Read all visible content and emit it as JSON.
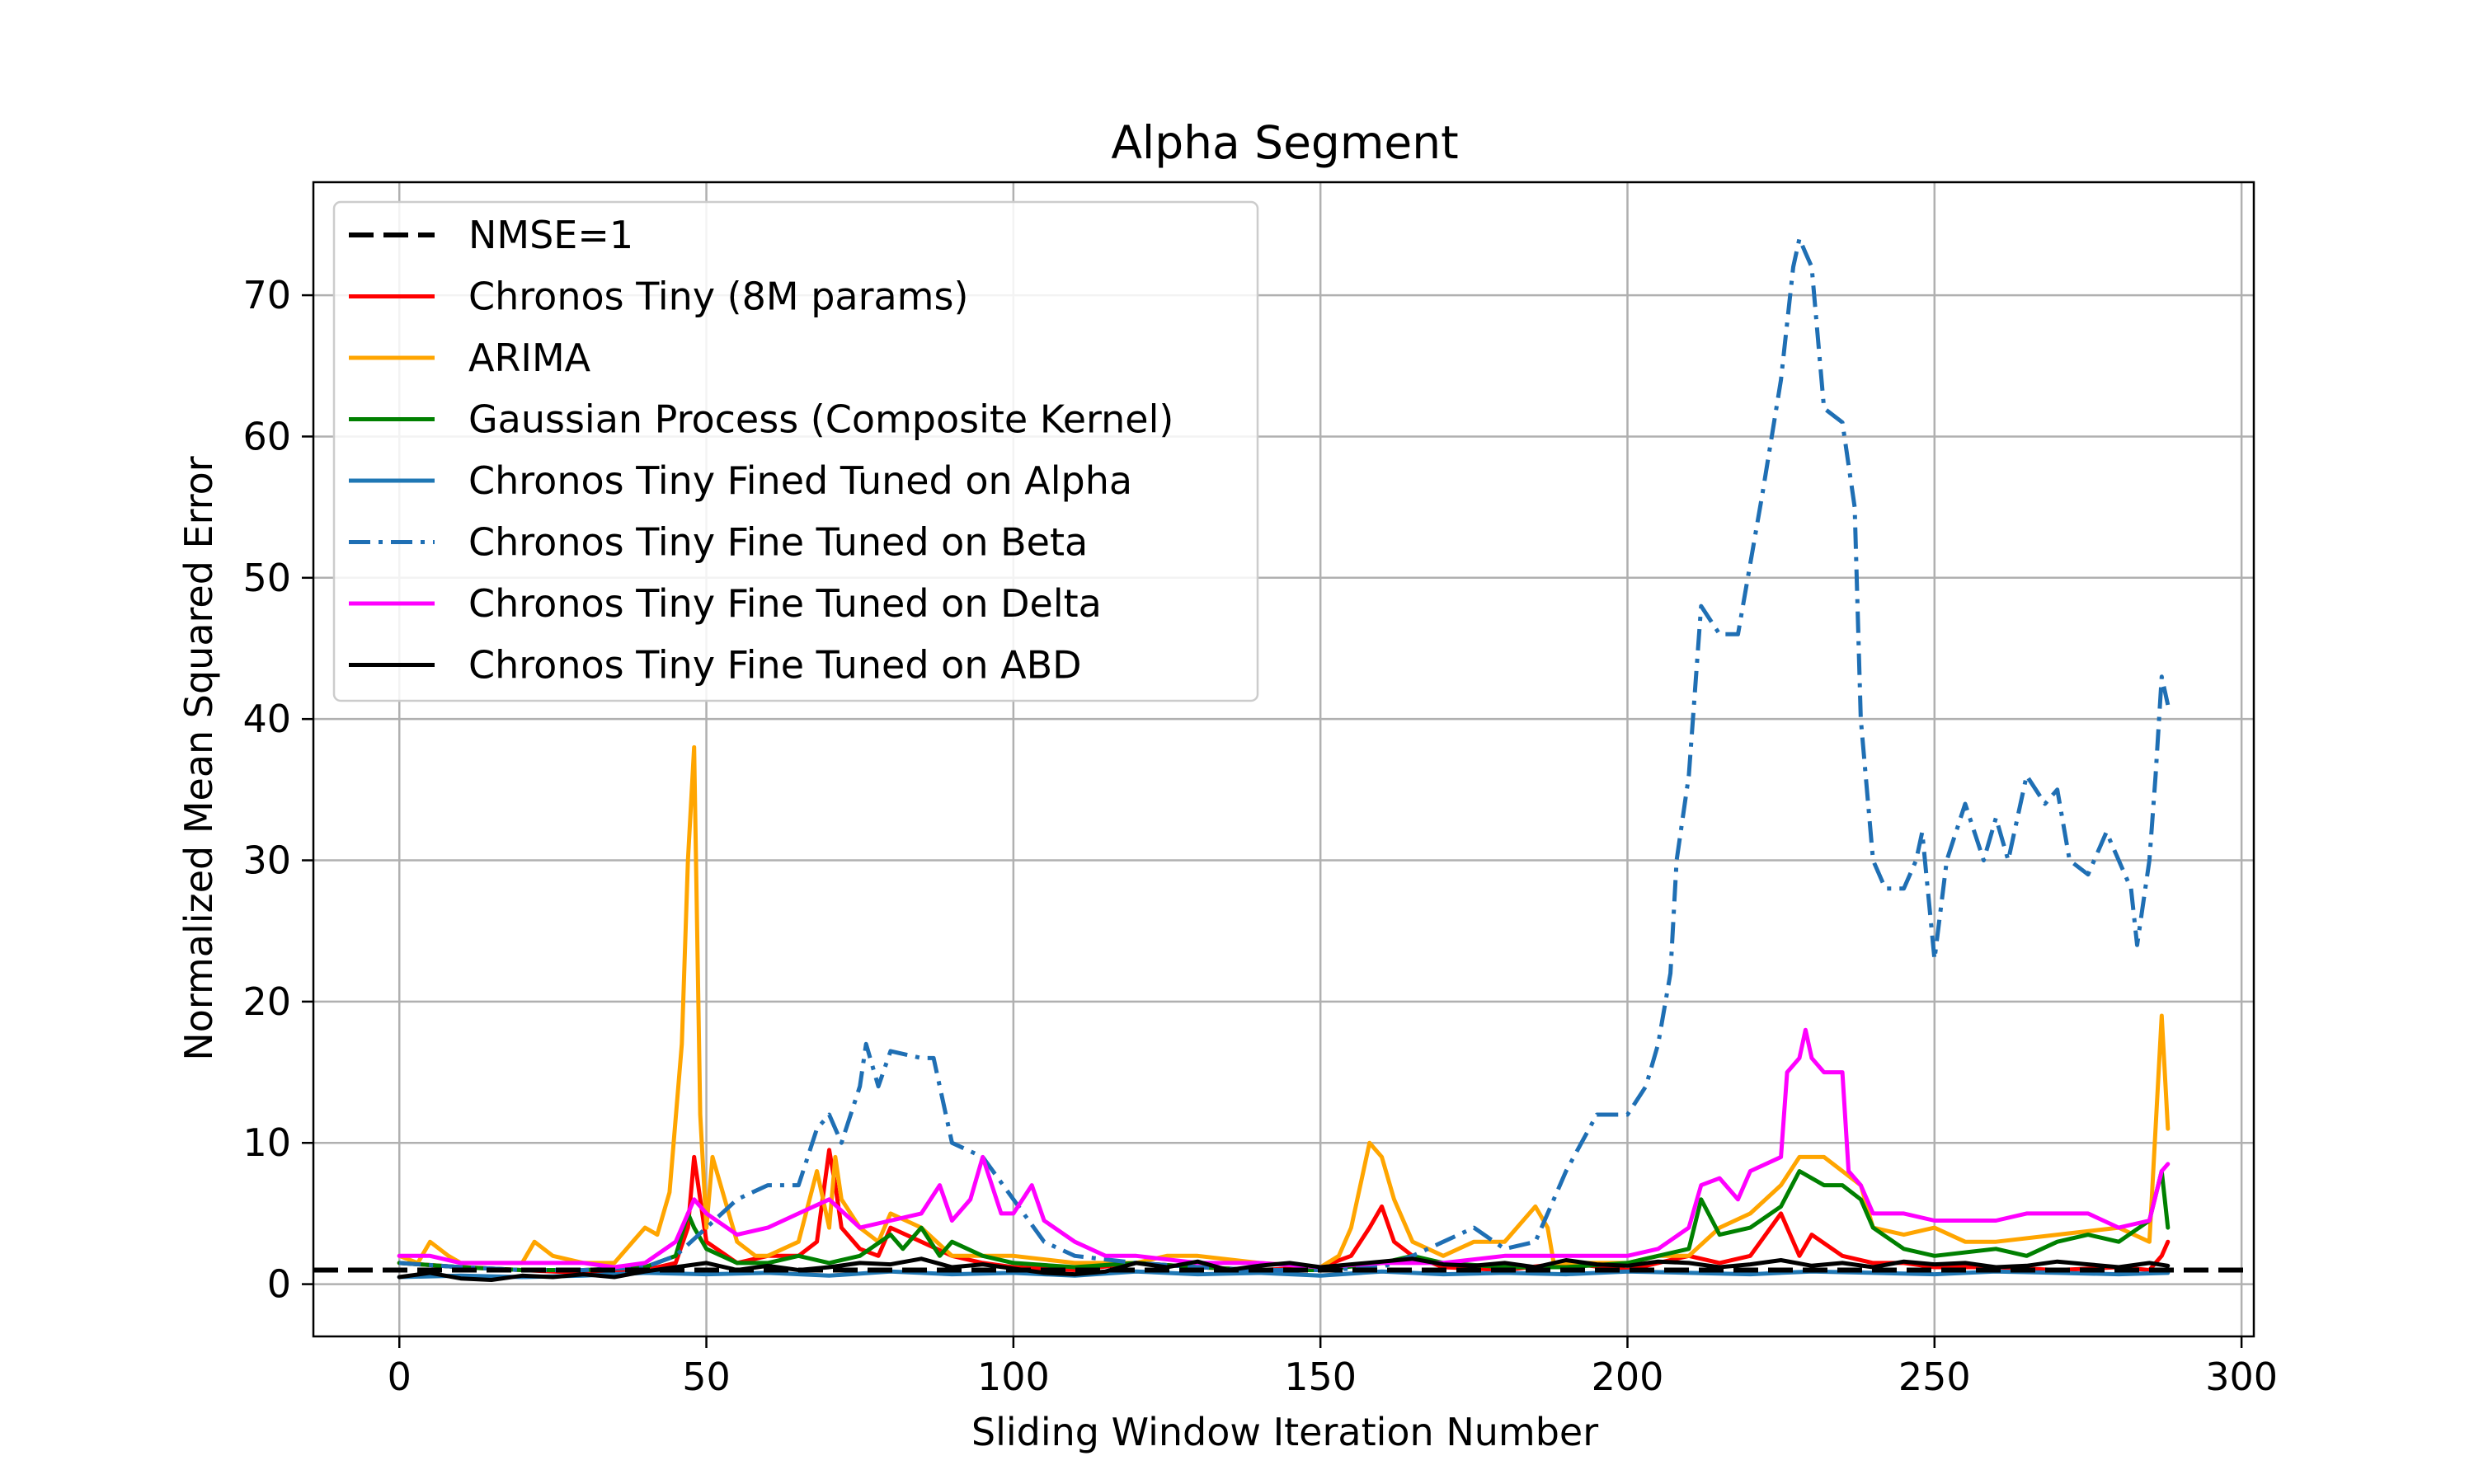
{
  "chart_data": {
    "type": "line",
    "title": "Alpha Segment",
    "xlabel": "Sliding Window Iteration Number",
    "ylabel": "Normalized Mean Squared Error",
    "xlim": [
      -14,
      302
    ],
    "ylim": [
      -3.7,
      78
    ],
    "xticks": [
      0,
      50,
      100,
      150,
      200,
      250,
      300
    ],
    "yticks": [
      0,
      10,
      20,
      30,
      40,
      50,
      60,
      70
    ],
    "grid": true,
    "legend_position": "top-left",
    "reference_line": {
      "name": "NMSE=1",
      "y": 1,
      "color": "#000000",
      "style": "dashed"
    },
    "series": [
      {
        "name": "Chronos Tiny (8M params)",
        "color": "#ff0000",
        "style": "solid",
        "x": [
          0,
          10,
          20,
          30,
          40,
          45,
          47,
          48,
          50,
          55,
          60,
          65,
          68,
          70,
          71,
          72,
          75,
          78,
          80,
          85,
          90,
          95,
          100,
          110,
          120,
          130,
          140,
          150,
          155,
          158,
          160,
          162,
          165,
          170,
          180,
          190,
          200,
          205,
          210,
          215,
          220,
          225,
          226,
          228,
          230,
          235,
          240,
          245,
          250,
          260,
          270,
          280,
          285,
          287,
          288
        ],
        "y": [
          1.5,
          1.2,
          1,
          0.8,
          1,
          1.5,
          4,
          9,
          3,
          1.5,
          2,
          2,
          3,
          9.5,
          7,
          4,
          2.5,
          2,
          4,
          3,
          2,
          1.5,
          1.2,
          1,
          1.5,
          1.2,
          1,
          1.2,
          2,
          4,
          5.5,
          3,
          2,
          1.2,
          1,
          1.5,
          1,
          1.5,
          2,
          1.5,
          2,
          5,
          4,
          2,
          3.5,
          2,
          1.5,
          1.5,
          1.2,
          1.2,
          1,
          1.2,
          1,
          2,
          3
        ]
      },
      {
        "name": "ARIMA",
        "color": "#ffa500",
        "style": "solid",
        "x": [
          0,
          3,
          5,
          8,
          10,
          15,
          20,
          22,
          25,
          30,
          35,
          38,
          40,
          42,
          44,
          46,
          47,
          48,
          49,
          50,
          51,
          55,
          58,
          60,
          65,
          68,
          70,
          71,
          72,
          75,
          78,
          80,
          85,
          90,
          95,
          100,
          110,
          120,
          125,
          130,
          140,
          150,
          153,
          155,
          157,
          158,
          160,
          162,
          165,
          170,
          175,
          180,
          185,
          187,
          188,
          190,
          195,
          200,
          205,
          210,
          215,
          220,
          225,
          228,
          230,
          232,
          235,
          238,
          240,
          245,
          250,
          255,
          260,
          270,
          280,
          285,
          287,
          288
        ],
        "y": [
          2,
          1.5,
          3,
          2,
          1.5,
          1.5,
          1.5,
          3,
          2,
          1.5,
          1.5,
          3,
          4,
          3.5,
          6.5,
          17,
          30,
          38,
          12,
          4,
          9,
          3,
          2,
          2,
          3,
          8,
          4,
          9,
          6,
          4,
          3,
          5,
          4,
          2,
          2,
          2,
          1.5,
          1.5,
          2,
          2,
          1.5,
          1.2,
          2,
          4,
          8,
          10,
          9,
          6,
          3,
          2,
          3,
          3,
          5.5,
          4,
          1.5,
          1.5,
          1.5,
          1.5,
          2,
          2,
          4,
          5,
          7,
          9,
          9,
          9,
          8,
          7,
          4,
          3.5,
          4,
          3,
          3,
          3.5,
          4,
          3,
          19,
          11
        ]
      },
      {
        "name": "Gaussian Process (Composite Kernel)",
        "color": "#008000",
        "style": "solid",
        "x": [
          0,
          10,
          20,
          30,
          40,
          45,
          47,
          48,
          50,
          55,
          60,
          65,
          70,
          75,
          80,
          82,
          85,
          88,
          90,
          95,
          100,
          110,
          120,
          130,
          140,
          150,
          160,
          165,
          170,
          180,
          190,
          200,
          205,
          210,
          212,
          215,
          220,
          225,
          228,
          230,
          232,
          235,
          238,
          240,
          245,
          250,
          260,
          265,
          270,
          275,
          280,
          285,
          287,
          288
        ],
        "y": [
          1.5,
          1.2,
          1,
          1,
          1.2,
          2,
          5,
          4,
          2.5,
          1.5,
          1.5,
          2,
          1.5,
          2,
          3.5,
          2.5,
          4,
          2,
          3,
          2,
          1.5,
          1.2,
          1.5,
          1.2,
          1,
          1,
          1.5,
          2,
          1.5,
          1.2,
          1.2,
          1.5,
          2,
          2.5,
          6,
          3.5,
          4,
          5.5,
          8,
          7.5,
          7,
          7,
          6,
          4,
          2.5,
          2,
          2.5,
          2,
          3,
          3.5,
          3,
          4.5,
          8,
          4
        ]
      },
      {
        "name": "Chronos Tiny Fined Tuned on Alpha",
        "color": "#1f77b4",
        "style": "solid",
        "x": [
          0,
          10,
          20,
          30,
          40,
          50,
          60,
          70,
          80,
          90,
          100,
          110,
          120,
          130,
          140,
          150,
          160,
          170,
          180,
          190,
          200,
          210,
          220,
          230,
          240,
          250,
          260,
          270,
          280,
          288
        ],
        "y": [
          0.5,
          0.6,
          0.5,
          0.6,
          0.8,
          0.7,
          0.8,
          0.6,
          0.9,
          0.7,
          0.8,
          0.6,
          0.9,
          0.7,
          0.8,
          0.6,
          0.9,
          0.7,
          0.8,
          0.7,
          0.9,
          0.8,
          0.7,
          0.9,
          0.8,
          0.7,
          0.9,
          0.8,
          0.7,
          0.8
        ]
      },
      {
        "name": "Chronos Tiny Fine Tuned on Beta",
        "color": "#1f6fb4",
        "style": "dashdot",
        "x": [
          0,
          10,
          20,
          30,
          40,
          45,
          50,
          55,
          60,
          65,
          68,
          70,
          72,
          75,
          76,
          78,
          80,
          85,
          87,
          90,
          95,
          100,
          105,
          110,
          120,
          130,
          140,
          150,
          160,
          165,
          170,
          175,
          180,
          185,
          190,
          195,
          200,
          203,
          205,
          207,
          208,
          210,
          212,
          215,
          218,
          220,
          222,
          225,
          227,
          228,
          229,
          230,
          232,
          235,
          237,
          238,
          240,
          242,
          245,
          247,
          248,
          250,
          252,
          255,
          258,
          260,
          262,
          265,
          268,
          270,
          272,
          275,
          278,
          280,
          282,
          283,
          285,
          286,
          287,
          288
        ],
        "y": [
          1.5,
          1.2,
          1,
          1,
          1.2,
          2,
          4,
          6,
          7,
          7,
          11,
          12,
          10,
          14,
          17,
          14,
          16.5,
          16,
          16,
          10,
          9,
          6,
          3,
          2,
          1.5,
          1.2,
          1,
          1,
          1.2,
          2,
          3,
          4,
          2.5,
          3,
          8,
          12,
          12,
          14,
          17,
          22,
          30,
          36,
          48,
          46,
          46,
          51,
          56,
          64,
          72,
          74,
          73,
          72,
          62,
          61,
          55,
          40,
          30,
          28,
          28,
          30,
          32,
          23,
          30,
          34,
          30,
          33,
          30,
          36,
          34,
          35,
          30,
          29,
          32,
          30,
          28,
          24,
          30,
          36,
          43,
          41
        ]
      },
      {
        "name": "Chronos Tiny Fine Tuned on Delta",
        "color": "#ff00ff",
        "style": "solid",
        "x": [
          0,
          5,
          10,
          15,
          20,
          25,
          30,
          35,
          40,
          45,
          48,
          50,
          55,
          60,
          65,
          70,
          75,
          80,
          85,
          88,
          90,
          93,
          95,
          98,
          100,
          103,
          105,
          110,
          115,
          120,
          130,
          140,
          150,
          160,
          170,
          180,
          190,
          200,
          205,
          210,
          212,
          215,
          218,
          220,
          225,
          226,
          228,
          229,
          230,
          232,
          235,
          236,
          238,
          240,
          245,
          250,
          255,
          260,
          265,
          270,
          275,
          280,
          285,
          287,
          288
        ],
        "y": [
          2,
          2,
          1.5,
          1.5,
          1.5,
          1.5,
          1.5,
          1.2,
          1.5,
          3,
          6,
          5,
          3.5,
          4,
          5,
          6,
          4,
          4.5,
          5,
          7,
          4.5,
          6,
          9,
          5,
          5,
          7,
          4.5,
          3,
          2,
          2,
          1.5,
          1.5,
          1.2,
          1.5,
          1.5,
          2,
          2,
          2,
          2.5,
          4,
          7,
          7.5,
          6,
          8,
          9,
          15,
          16,
          18,
          16,
          15,
          15,
          8,
          7,
          5,
          5,
          4.5,
          4.5,
          4.5,
          5,
          5,
          5,
          4,
          4.5,
          8,
          8.5
        ]
      },
      {
        "name": "Chronos Tiny Fine Tuned on ABD",
        "color": "#000000",
        "style": "solid",
        "x": [
          0,
          5,
          10,
          15,
          20,
          25,
          30,
          35,
          40,
          45,
          50,
          55,
          60,
          65,
          70,
          75,
          80,
          85,
          90,
          95,
          100,
          105,
          110,
          115,
          120,
          125,
          130,
          135,
          140,
          145,
          150,
          155,
          160,
          165,
          170,
          175,
          180,
          185,
          190,
          195,
          200,
          205,
          210,
          215,
          220,
          225,
          230,
          235,
          240,
          245,
          250,
          255,
          260,
          265,
          270,
          275,
          280,
          285,
          288
        ],
        "y": [
          0.5,
          0.8,
          0.4,
          0.3,
          0.6,
          0.5,
          0.7,
          0.5,
          0.9,
          1.2,
          1.5,
          1,
          1.3,
          1,
          1.2,
          1.5,
          1.4,
          1.8,
          1.2,
          1.4,
          1.1,
          0.8,
          0.7,
          0.9,
          1.5,
          1.2,
          1.6,
          1,
          1.3,
          1.5,
          1.2,
          1.4,
          1.6,
          1.8,
          1.4,
          1.3,
          1.5,
          1.2,
          1.7,
          1.4,
          1.3,
          1.6,
          1.5,
          1.2,
          1.4,
          1.7,
          1.3,
          1.5,
          1.2,
          1.6,
          1.4,
          1.5,
          1.2,
          1.3,
          1.6,
          1.4,
          1.2,
          1.5,
          1.3
        ]
      }
    ]
  }
}
